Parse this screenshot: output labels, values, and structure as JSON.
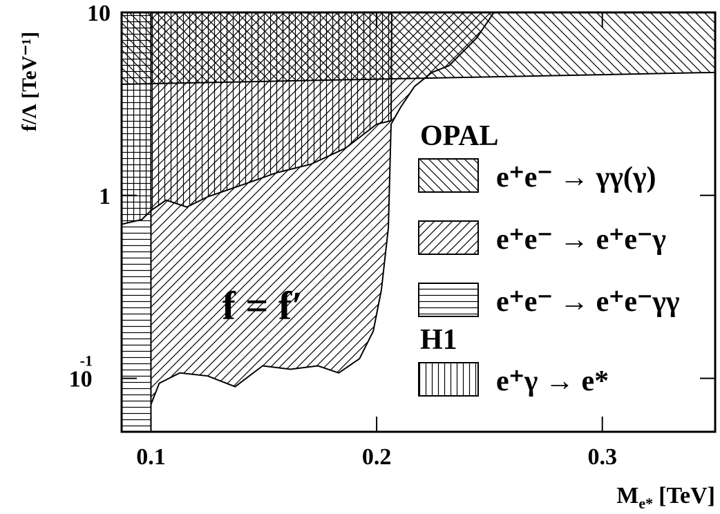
{
  "chart_data": {
    "type": "exclusion",
    "x_label": {
      "main": "M",
      "sub": "e*",
      "unit": "[TeV]"
    },
    "y_label": "f/Λ [TeV⁻¹]",
    "annotation": "f = f′",
    "xlim": [
      0.087,
      0.35
    ],
    "xticks": [
      0.1,
      0.2,
      0.3
    ],
    "ylim": [
      0.051,
      10
    ],
    "yticks": [
      {
        "value": 0.1,
        "label": "10",
        "sup": "-1"
      },
      1,
      10
    ],
    "log_y": true,
    "groups": [
      {
        "title": "OPAL",
        "series": [
          {
            "name": "e⁺e⁻ → γγ(γ)",
            "hatch": "back",
            "side": "above",
            "x": [
              0.087,
              0.35
            ],
            "y": [
              4.05,
              4.7
            ]
          },
          {
            "name": "e⁺e⁻ → e⁺e⁻γ",
            "hatch": "forward",
            "side": "above",
            "x": [
              0.1,
              0.1037,
              0.1128,
              0.1251,
              0.1373,
              0.1495,
              0.1618,
              0.174,
              0.1832,
              0.1924,
              0.1985,
              0.2021,
              0.2052,
              0.2064,
              0.2107,
              0.2168,
              0.2245,
              0.2321,
              0.2443,
              0.252
            ],
            "y": [
              0.072,
              0.094,
              0.107,
              0.103,
              0.09,
              0.117,
              0.112,
              0.117,
              0.107,
              0.128,
              0.181,
              0.304,
              0.665,
              2.45,
              3.04,
              3.94,
              4.7,
              5.12,
              7.25,
              10
            ]
          },
          {
            "name": "e⁺e⁻ → e⁺e⁻γγ",
            "hatch": "horizontal",
            "side": "left",
            "x": [
              0.1,
              0.1
            ],
            "y": [
              0.051,
              10
            ]
          }
        ]
      },
      {
        "title": "H1",
        "series": [
          {
            "name": "e⁺γ → e*",
            "hatch": "vertical",
            "side": "above",
            "x": [
              0.087,
              0.096,
              0.1,
              0.1067,
              0.1159,
              0.1251,
              0.1404,
              0.1557,
              0.1709,
              0.1862,
              0.2,
              0.2064,
              0.2067
            ],
            "y": [
              0.695,
              0.738,
              0.826,
              0.942,
              0.863,
              0.982,
              1.14,
              1.33,
              1.48,
              1.81,
              2.45,
              2.56,
              10
            ]
          }
        ]
      }
    ]
  }
}
